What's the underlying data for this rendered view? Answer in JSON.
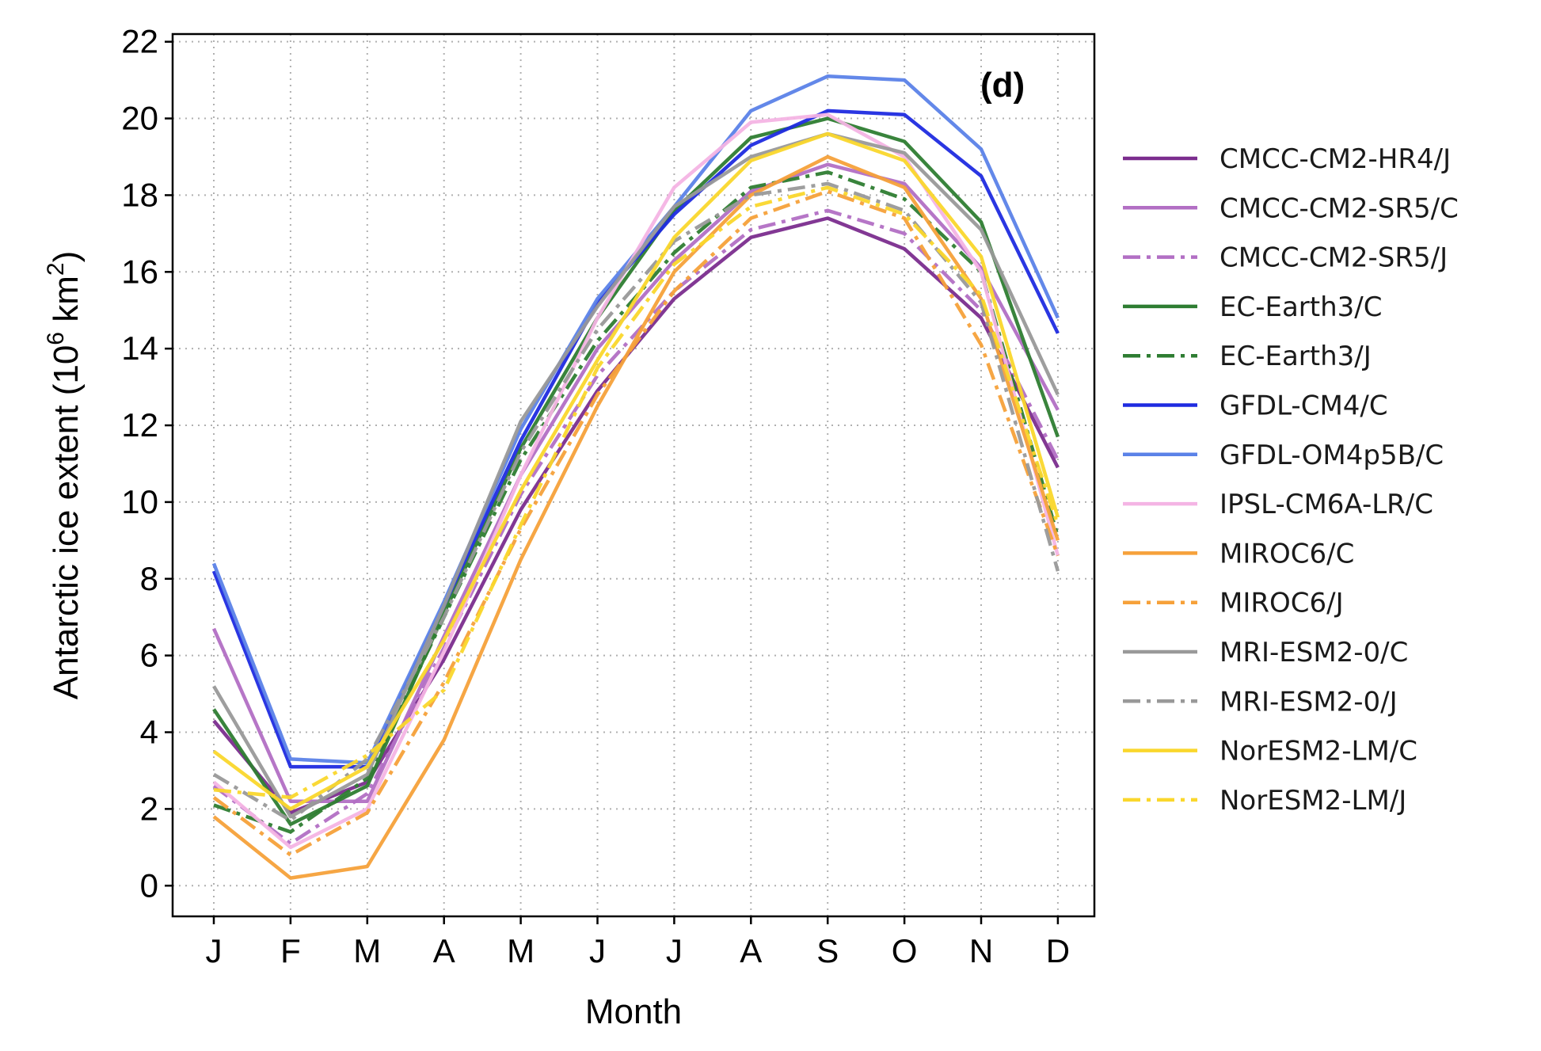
{
  "chart_data": {
    "type": "line",
    "title": "",
    "panel_tag": "(d)",
    "xlabel": "Month",
    "ylabel": "Antarctic ice extent (10⁶ km²)",
    "ylabel_parts": {
      "pre": "Antarctic ice extent (10",
      "sup1": "6",
      "mid": " km",
      "sup2": "2",
      "post": ")"
    },
    "ylim": [
      -0.8,
      22.2
    ],
    "yticks": [
      0,
      2,
      4,
      6,
      8,
      10,
      12,
      14,
      16,
      18,
      20,
      22
    ],
    "yticklabels": [
      "0",
      "2",
      "4",
      "6",
      "8",
      "10",
      "12",
      "14",
      "16",
      "18",
      "20",
      "22"
    ],
    "x": [
      "J",
      "F",
      "M",
      "A",
      "M",
      "J",
      "J",
      "A",
      "S",
      "O",
      "N",
      "D"
    ],
    "grid": true,
    "legend_position": "outside-right",
    "series": [
      {
        "name": "CMCC-CM2-HR4/J",
        "color": "#7b2d8e",
        "style": "solid",
        "values": [
          4.3,
          1.9,
          2.7,
          5.9,
          9.8,
          12.9,
          15.3,
          16.9,
          17.4,
          16.6,
          14.8,
          10.9
        ]
      },
      {
        "name": "CMCC-CM2-SR5/C",
        "color": "#b26fc4",
        "style": "solid",
        "values": [
          6.7,
          2.2,
          2.2,
          6.5,
          10.7,
          14.0,
          16.3,
          18.1,
          18.8,
          18.3,
          16.1,
          12.4
        ]
      },
      {
        "name": "CMCC-CM2-SR5/J",
        "color": "#b26fc4",
        "style": "dashdot",
        "values": [
          2.6,
          1.1,
          2.4,
          6.2,
          10.2,
          13.3,
          15.5,
          17.1,
          17.6,
          17.0,
          15.0,
          11.1
        ]
      },
      {
        "name": "EC-Earth3/C",
        "color": "#2e7d32",
        "style": "solid",
        "values": [
          4.6,
          1.6,
          2.6,
          7.1,
          11.4,
          14.8,
          17.6,
          19.5,
          20.0,
          19.4,
          17.3,
          11.7
        ]
      },
      {
        "name": "EC-Earth3/J",
        "color": "#2e7d32",
        "style": "dashdot",
        "values": [
          2.1,
          1.4,
          2.8,
          7.0,
          11.1,
          14.2,
          16.5,
          18.2,
          18.6,
          17.9,
          16.0,
          9.1
        ]
      },
      {
        "name": "GFDL-CM4/C",
        "color": "#1f2be0",
        "style": "solid",
        "values": [
          8.2,
          3.1,
          3.1,
          7.3,
          11.6,
          15.2,
          17.5,
          19.3,
          20.2,
          20.1,
          18.5,
          14.4
        ]
      },
      {
        "name": "GFDL-OM4p5B/C",
        "color": "#5b82e8",
        "style": "solid",
        "values": [
          8.4,
          3.3,
          3.2,
          7.4,
          11.9,
          15.3,
          17.7,
          20.2,
          21.1,
          21.0,
          19.2,
          14.8
        ]
      },
      {
        "name": "IPSL-CM6A-LR/C",
        "color": "#f4b4e4",
        "style": "solid",
        "values": [
          2.7,
          1.0,
          2.0,
          6.1,
          10.7,
          14.8,
          18.2,
          19.9,
          20.1,
          19.0,
          16.0,
          8.6
        ]
      },
      {
        "name": "MIROC6/C",
        "color": "#f6a13a",
        "style": "solid",
        "values": [
          1.8,
          0.2,
          0.5,
          3.8,
          8.5,
          12.5,
          16.0,
          18.0,
          19.0,
          18.2,
          15.3,
          9.0
        ]
      },
      {
        "name": "MIROC6/J",
        "color": "#f6a13a",
        "style": "dashdot",
        "values": [
          2.3,
          0.8,
          1.9,
          5.3,
          9.3,
          12.8,
          15.5,
          17.4,
          18.1,
          17.4,
          14.1,
          8.6
        ]
      },
      {
        "name": "MRI-ESM2-0/C",
        "color": "#999999",
        "style": "solid",
        "values": [
          5.2,
          1.8,
          2.9,
          7.3,
          12.1,
          15.1,
          17.7,
          19.0,
          19.6,
          19.1,
          17.1,
          12.8
        ]
      },
      {
        "name": "MRI-ESM2-0/J",
        "color": "#999999",
        "style": "dashdot",
        "values": [
          2.9,
          1.7,
          3.3,
          7.0,
          11.3,
          14.5,
          16.8,
          18.0,
          18.3,
          17.6,
          15.2,
          8.2
        ]
      },
      {
        "name": "NorESM2-LM/C",
        "color": "#fad72c",
        "style": "solid",
        "values": [
          3.5,
          2.0,
          3.1,
          6.4,
          10.3,
          13.7,
          16.9,
          18.9,
          19.6,
          18.9,
          16.4,
          9.6
        ]
      },
      {
        "name": "NorESM2-LM/J",
        "color": "#fad72c",
        "style": "dashdot",
        "values": [
          2.5,
          2.3,
          3.4,
          5.1,
          9.4,
          13.5,
          16.2,
          17.7,
          18.2,
          17.5,
          15.4,
          9.4
        ]
      }
    ]
  }
}
